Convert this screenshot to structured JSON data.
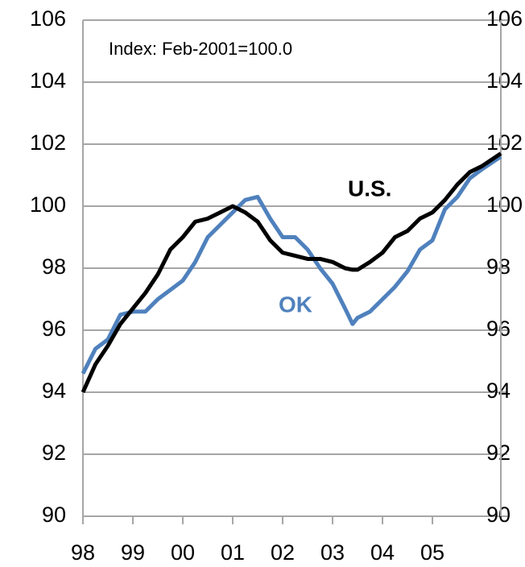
{
  "chart_data": {
    "type": "line",
    "annotations": [
      "Index: Feb-2001=100.0"
    ],
    "xlim": [
      1998,
      2006.37
    ],
    "xticks": [
      {
        "value": 1998,
        "label": "98"
      },
      {
        "value": 1999,
        "label": "99"
      },
      {
        "value": 2000,
        "label": "00"
      },
      {
        "value": 2001,
        "label": "01"
      },
      {
        "value": 2002,
        "label": "02"
      },
      {
        "value": 2003,
        "label": "03"
      },
      {
        "value": 2004,
        "label": "04"
      },
      {
        "value": 2005,
        "label": "05"
      }
    ],
    "ylim": [
      90,
      106
    ],
    "yticks": [
      90,
      92,
      94,
      96,
      98,
      100,
      102,
      104,
      106
    ],
    "y2lim": [
      90,
      106
    ],
    "y2ticks": [
      90,
      92,
      94,
      96,
      98,
      100,
      102,
      104,
      106
    ],
    "grid": true,
    "x": [
      1998,
      1998.25,
      1998.5,
      1998.75,
      1999,
      1999.25,
      1999.5,
      1999.75,
      2000,
      2000.25,
      2000.5,
      2000.75,
      2001,
      2001.25,
      2001.5,
      2001.75,
      2002,
      2002.25,
      2002.5,
      2002.75,
      2003,
      2003.25,
      2003.4,
      2003.5,
      2003.75,
      2004,
      2004.25,
      2004.5,
      2004.75,
      2005,
      2005.25,
      2005.5,
      2005.75,
      2006,
      2006.37
    ],
    "series": [
      {
        "name": "U.S.",
        "color": "#000000",
        "values": [
          94.0,
          94.9,
          95.5,
          96.2,
          96.7,
          97.2,
          97.8,
          98.6,
          99.0,
          99.5,
          99.6,
          99.8,
          100.0,
          99.8,
          99.5,
          98.9,
          98.5,
          98.4,
          98.3,
          98.3,
          98.2,
          98.0,
          97.95,
          97.95,
          98.2,
          98.5,
          99.0,
          99.2,
          99.6,
          99.8,
          100.2,
          100.7,
          101.1,
          101.3,
          101.7
        ]
      },
      {
        "name": "OK",
        "color": "#4f81bd",
        "values": [
          94.6,
          95.4,
          95.7,
          96.5,
          96.6,
          96.6,
          97.0,
          97.3,
          97.6,
          98.2,
          99.0,
          99.4,
          99.8,
          100.2,
          100.3,
          99.6,
          99.0,
          99.0,
          98.6,
          98.0,
          97.5,
          96.7,
          96.2,
          96.4,
          96.6,
          97.0,
          97.4,
          97.9,
          98.6,
          98.9,
          99.9,
          100.3,
          100.9,
          101.2,
          101.6
        ]
      }
    ]
  }
}
